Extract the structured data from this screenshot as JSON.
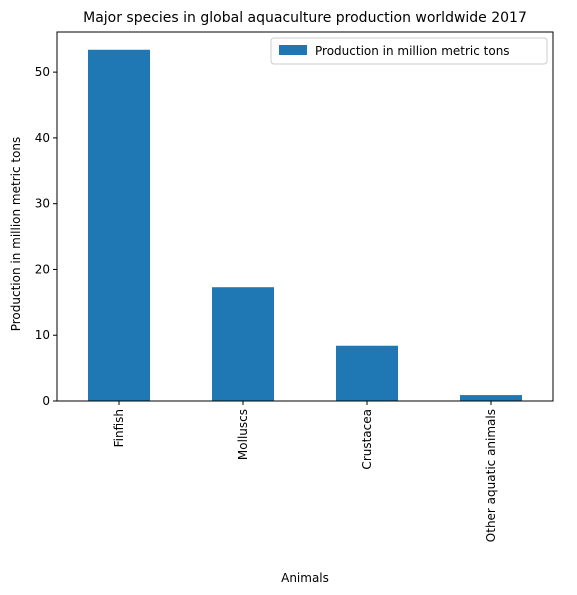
{
  "chart_data": {
    "type": "bar",
    "title": "Major species in global aquaculture production worldwide 2017",
    "xlabel": "Animals",
    "ylabel": "Production in million metric tons",
    "categories": [
      "Finfish",
      "Molluscs",
      "Crustacea",
      "Other aquatic animals"
    ],
    "series": [
      {
        "name": "Production in million metric tons",
        "values": [
          53.4,
          17.3,
          8.4,
          0.9
        ]
      }
    ],
    "ylim": [
      0,
      56.1
    ],
    "yticks": [
      0,
      10,
      20,
      30,
      40,
      50
    ],
    "grid": false,
    "legend": "top-right",
    "colors": {
      "bar": "#1f77b4",
      "axis": "#000000"
    }
  }
}
